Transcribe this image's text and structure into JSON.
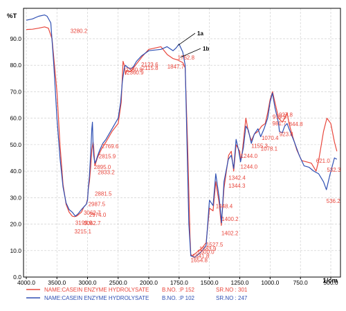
{
  "chart_data": {
    "type": "line",
    "ylabel": "%T",
    "xlabel": "1/cm",
    "xlim": [
      4000,
      400
    ],
    "ylim": [
      0,
      100
    ],
    "x_ticks": [
      "4000.0",
      "3500.0",
      "3000.0",
      "2500.0",
      "2000.0",
      "1750.0",
      "1500.0",
      "1250.0",
      "1000.0",
      "750.0",
      "500.0"
    ],
    "x_tick_values": [
      4000,
      3500,
      3000,
      2500,
      2000,
      1750,
      1500,
      1250,
      1000,
      750,
      500
    ],
    "y_ticks": [
      "0.0",
      "10.0",
      "20.0",
      "30.0",
      "40.0",
      "50.0",
      "60.0",
      "70.0",
      "80.0",
      "90.0"
    ],
    "y_tick_values": [
      0,
      10,
      20,
      30,
      40,
      50,
      60,
      70,
      80,
      90
    ],
    "grid": true,
    "series": [
      {
        "name": "1a",
        "color": "#e8463c",
        "points": [
          [
            4000,
            93.5
          ],
          [
            3900,
            93.6
          ],
          [
            3800,
            94.0
          ],
          [
            3700,
            94.5
          ],
          [
            3640,
            94.0
          ],
          [
            3580,
            90.0
          ],
          [
            3500,
            70.0
          ],
          [
            3450,
            50.0
          ],
          [
            3400,
            35.0
          ],
          [
            3350,
            27.5
          ],
          [
            3300,
            24.5
          ],
          [
            3250,
            23.0
          ],
          [
            3215,
            22.8
          ],
          [
            3180,
            23.0
          ],
          [
            3100,
            24.5
          ],
          [
            3060,
            26.5
          ],
          [
            3020,
            27.5
          ],
          [
            3000,
            29.5
          ],
          [
            2987,
            33.5
          ],
          [
            2970,
            36.0
          ],
          [
            2950,
            41.0
          ],
          [
            2930,
            48.0
          ],
          [
            2910,
            51.0
          ],
          [
            2900,
            49.0
          ],
          [
            2880,
            42.0
          ],
          [
            2860,
            43.5
          ],
          [
            2840,
            45.0
          ],
          [
            2800,
            47.0
          ],
          [
            2769,
            48.5
          ],
          [
            2700,
            51.0
          ],
          [
            2600,
            55.0
          ],
          [
            2500,
            58.0
          ],
          [
            2450,
            66.0
          ],
          [
            2420,
            81.5
          ],
          [
            2400,
            80.0
          ],
          [
            2380,
            76.5
          ],
          [
            2360,
            78.0
          ],
          [
            2300,
            77.5
          ],
          [
            2250,
            79.0
          ],
          [
            2200,
            80.5
          ],
          [
            2100,
            83.5
          ],
          [
            2000,
            86.0
          ],
          [
            1900,
            87.0
          ],
          [
            1847,
            84.0
          ],
          [
            1800,
            82.5
          ],
          [
            1762,
            82.0
          ],
          [
            1720,
            81.0
          ],
          [
            1700,
            79.0
          ],
          [
            1680,
            50.0
          ],
          [
            1660,
            15.0
          ],
          [
            1654,
            8.5
          ],
          [
            1640,
            8.0
          ],
          [
            1600,
            9.5
          ],
          [
            1560,
            11.0
          ],
          [
            1527,
            13.0
          ],
          [
            1500,
            26.0
          ],
          [
            1470,
            25.0
          ],
          [
            1448,
            36.0
          ],
          [
            1420,
            28.0
          ],
          [
            1402,
            19.5
          ],
          [
            1380,
            33.5
          ],
          [
            1342,
            46.0
          ],
          [
            1320,
            47.5
          ],
          [
            1300,
            40.0
          ],
          [
            1280,
            50.0
          ],
          [
            1250,
            47.5
          ],
          [
            1244,
            44.0
          ],
          [
            1230,
            47.0
          ],
          [
            1200,
            60.0
          ],
          [
            1180,
            55.0
          ],
          [
            1155,
            51.5
          ],
          [
            1130,
            54.0
          ],
          [
            1100,
            55.0
          ],
          [
            1070,
            57.0
          ],
          [
            1040,
            58.0
          ],
          [
            1020,
            62.0
          ],
          [
            1000,
            67.0
          ],
          [
            980,
            70.0
          ],
          [
            960,
            66.0
          ],
          [
            930,
            60.0
          ],
          [
            900,
            58.5
          ],
          [
            880,
            60.0
          ],
          [
            860,
            62.0
          ],
          [
            844,
            58.0
          ],
          [
            820,
            54.0
          ],
          [
            780,
            48.0
          ],
          [
            740,
            44.0
          ],
          [
            700,
            43.5
          ],
          [
            660,
            43.0
          ],
          [
            621,
            40.0
          ],
          [
            600,
            44.0
          ],
          [
            560,
            55.0
          ],
          [
            532,
            60.0
          ],
          [
            500,
            58.0
          ],
          [
            470,
            51.0
          ],
          [
            450,
            47.5
          ]
        ]
      },
      {
        "name": "1b",
        "color": "#2e4fb3",
        "points": [
          [
            4000,
            97.0
          ],
          [
            3900,
            97.5
          ],
          [
            3800,
            98.5
          ],
          [
            3700,
            99.0
          ],
          [
            3660,
            98.5
          ],
          [
            3600,
            96.0
          ],
          [
            3550,
            80.0
          ],
          [
            3500,
            60.0
          ],
          [
            3450,
            45.0
          ],
          [
            3400,
            34.0
          ],
          [
            3350,
            28.0
          ],
          [
            3300,
            25.5
          ],
          [
            3250,
            24.5
          ],
          [
            3199,
            23.0
          ],
          [
            3150,
            24.0
          ],
          [
            3100,
            25.5
          ],
          [
            3060,
            26.5
          ],
          [
            3020,
            27.5
          ],
          [
            3000,
            29.0
          ],
          [
            2987,
            34.0
          ],
          [
            2970,
            38.0
          ],
          [
            2950,
            46.0
          ],
          [
            2930,
            56.0
          ],
          [
            2920,
            58.5
          ],
          [
            2910,
            50.0
          ],
          [
            2900,
            46.0
          ],
          [
            2880,
            43.0
          ],
          [
            2860,
            44.0
          ],
          [
            2833,
            46.0
          ],
          [
            2800,
            48.0
          ],
          [
            2750,
            50.5
          ],
          [
            2700,
            52.0
          ],
          [
            2600,
            56.0
          ],
          [
            2500,
            60.0
          ],
          [
            2460,
            66.0
          ],
          [
            2430,
            74.0
          ],
          [
            2400,
            79.0
          ],
          [
            2380,
            80.0
          ],
          [
            2360,
            79.5
          ],
          [
            2300,
            78.5
          ],
          [
            2250,
            79.5
          ],
          [
            2200,
            81.5
          ],
          [
            2120,
            83.5
          ],
          [
            2000,
            85.5
          ],
          [
            1900,
            86.0
          ],
          [
            1850,
            87.0
          ],
          [
            1800,
            85.5
          ],
          [
            1775,
            86.5
          ],
          [
            1750,
            88.0
          ],
          [
            1720,
            85.0
          ],
          [
            1700,
            80.0
          ],
          [
            1690,
            60.0
          ],
          [
            1670,
            20.0
          ],
          [
            1654,
            8.0
          ],
          [
            1620,
            7.5
          ],
          [
            1580,
            9.0
          ],
          [
            1550,
            10.5
          ],
          [
            1527,
            12.0
          ],
          [
            1500,
            29.0
          ],
          [
            1470,
            27.0
          ],
          [
            1448,
            39.0
          ],
          [
            1420,
            30.0
          ],
          [
            1400,
            20.5
          ],
          [
            1380,
            36.0
          ],
          [
            1344,
            44.5
          ],
          [
            1320,
            46.0
          ],
          [
            1300,
            41.0
          ],
          [
            1280,
            52.0
          ],
          [
            1260,
            48.0
          ],
          [
            1244,
            43.5
          ],
          [
            1220,
            49.0
          ],
          [
            1200,
            57.0
          ],
          [
            1180,
            55.5
          ],
          [
            1155,
            50.5
          ],
          [
            1130,
            54.0
          ],
          [
            1100,
            56.0
          ],
          [
            1078,
            53.0
          ],
          [
            1050,
            56.0
          ],
          [
            1020,
            60.0
          ],
          [
            1000,
            66.0
          ],
          [
            981,
            69.5
          ],
          [
            960,
            64.0
          ],
          [
            930,
            58.0
          ],
          [
            923,
            55.0
          ],
          [
            900,
            54.5
          ],
          [
            880,
            57.0
          ],
          [
            860,
            58.0
          ],
          [
            844,
            56.0
          ],
          [
            800,
            51.0
          ],
          [
            760,
            46.0
          ],
          [
            720,
            42.0
          ],
          [
            680,
            41.5
          ],
          [
            640,
            40.0
          ],
          [
            600,
            39.0
          ],
          [
            560,
            36.0
          ],
          [
            536,
            33.0
          ],
          [
            510,
            38.0
          ],
          [
            470,
            45.0
          ],
          [
            450,
            44.5
          ]
        ]
      }
    ],
    "peak_labels": [
      {
        "text": "3280.2",
        "x": 3280.2,
        "y": 92.2,
        "color": "#e8463c"
      },
      {
        "text": "2769.6",
        "x": 2769.6,
        "y": 48.6,
        "color": "#e8463c"
      },
      {
        "text": "2815.9",
        "x": 2815.9,
        "y": 44.8,
        "color": "#e8463c"
      },
      {
        "text": "2895.0",
        "x": 2895.0,
        "y": 40.8,
        "color": "#e8463c"
      },
      {
        "text": "2833.2",
        "x": 2833.2,
        "y": 38.8,
        "color": "#e8463c"
      },
      {
        "text": "2881.5",
        "x": 2881.5,
        "y": 30.8,
        "color": "#e8463c"
      },
      {
        "text": "2987.5",
        "x": 2987.5,
        "y": 26.8,
        "color": "#e8463c"
      },
      {
        "text": "3062.7",
        "x": 3062.7,
        "y": 23.6,
        "color": "#e8463c"
      },
      {
        "text": "2974.0",
        "x": 2974.0,
        "y": 22.8,
        "color": "#e8463c"
      },
      {
        "text": "3199.9",
        "x": 3199.9,
        "y": 19.8,
        "color": "#e8463c"
      },
      {
        "text": "3062.7",
        "x": 3062.7,
        "y": 19.6,
        "color": "#e8463c"
      },
      {
        "text": "3215.1",
        "x": 3215.1,
        "y": 16.5,
        "color": "#e8463c"
      },
      {
        "text": "2380.8",
        "x": 2380.8,
        "y": 77.6,
        "color": "#e8463c"
      },
      {
        "text": "2360.9",
        "x": 2360.9,
        "y": 76.5,
        "color": "#e8463c"
      },
      {
        "text": "2123.6",
        "x": 2123.6,
        "y": 79.5,
        "color": "#e8463c"
      },
      {
        "text": "2115.8",
        "x": 2115.8,
        "y": 78.2,
        "color": "#e8463c"
      },
      {
        "text": "1762.8",
        "x": 1762.8,
        "y": 82.2,
        "color": "#e8463c"
      },
      {
        "text": "1847.7",
        "x": 1847.7,
        "y": 78.8,
        "color": "#e8463c"
      },
      {
        "text": "1448.4",
        "x": 1448.4,
        "y": 26.0,
        "color": "#e8463c"
      },
      {
        "text": "1400.2",
        "x": 1400.2,
        "y": 21.2,
        "color": "#e8463c"
      },
      {
        "text": "1402.2",
        "x": 1402.2,
        "y": 15.8,
        "color": "#e8463c"
      },
      {
        "text": "1527.5",
        "x": 1527.5,
        "y": 11.5,
        "color": "#e8463c"
      },
      {
        "text": "1583.9",
        "x": 1583.9,
        "y": 10.0,
        "color": "#e8463c"
      },
      {
        "text": "1600.0",
        "x": 1600.0,
        "y": 8.7,
        "color": "#e8463c"
      },
      {
        "text": "1641.8",
        "x": 1641.8,
        "y": 7.2,
        "color": "#e8463c"
      },
      {
        "text": "1654.8",
        "x": 1654.8,
        "y": 5.6,
        "color": "#e8463c"
      },
      {
        "text": "1342.4",
        "x": 1342.4,
        "y": 36.8,
        "color": "#e8463c"
      },
      {
        "text": "1344.3",
        "x": 1344.3,
        "y": 33.8,
        "color": "#e8463c"
      },
      {
        "text": "1244.0",
        "x": 1244.0,
        "y": 45.0,
        "color": "#e8463c"
      },
      {
        "text": "1244.0",
        "x": 1244.0,
        "y": 41.0,
        "color": "#e8463c"
      },
      {
        "text": "1155.3",
        "x": 1155.3,
        "y": 48.8,
        "color": "#e8463c"
      },
      {
        "text": "1078.1",
        "x": 1078.1,
        "y": 47.8,
        "color": "#e8463c"
      },
      {
        "text": "1070.4",
        "x": 1070.4,
        "y": 51.8,
        "color": "#e8463c"
      },
      {
        "text": "927.8",
        "x": 927.8,
        "y": 60.6,
        "color": "#e8463c"
      },
      {
        "text": "979.5",
        "x": 979.5,
        "y": 59.8,
        "color": "#e8463c"
      },
      {
        "text": "981.7",
        "x": 981.7,
        "y": 57.3,
        "color": "#e8463c"
      },
      {
        "text": "844.8",
        "x": 844.8,
        "y": 57.0,
        "color": "#e8463c"
      },
      {
        "text": "923.8",
        "x": 923.8,
        "y": 53.2,
        "color": "#e8463c"
      },
      {
        "text": "621.0",
        "x": 621.0,
        "y": 43.2,
        "color": "#e8463c"
      },
      {
        "text": "532.3",
        "x": 532.3,
        "y": 39.8,
        "color": "#e8463c"
      },
      {
        "text": "536.2",
        "x": 536.2,
        "y": 28.0,
        "color": "#e8463c"
      }
    ],
    "callouts": [
      {
        "text": "1a"
      },
      {
        "text": "1b"
      }
    ]
  },
  "legend": [
    {
      "color": "#e8463c",
      "name": "NAME:CASEIN ENZYME HYDROLYSATE",
      "bno": "B.NO. :P 152",
      "srno": "SR.NO : 301"
    },
    {
      "color": "#2e4fb3",
      "name": "NAME:CASEIN ENZYME HYDROLYSATE",
      "bno": "B.NO. :P 102",
      "srno": "SR.NO : 247"
    }
  ]
}
